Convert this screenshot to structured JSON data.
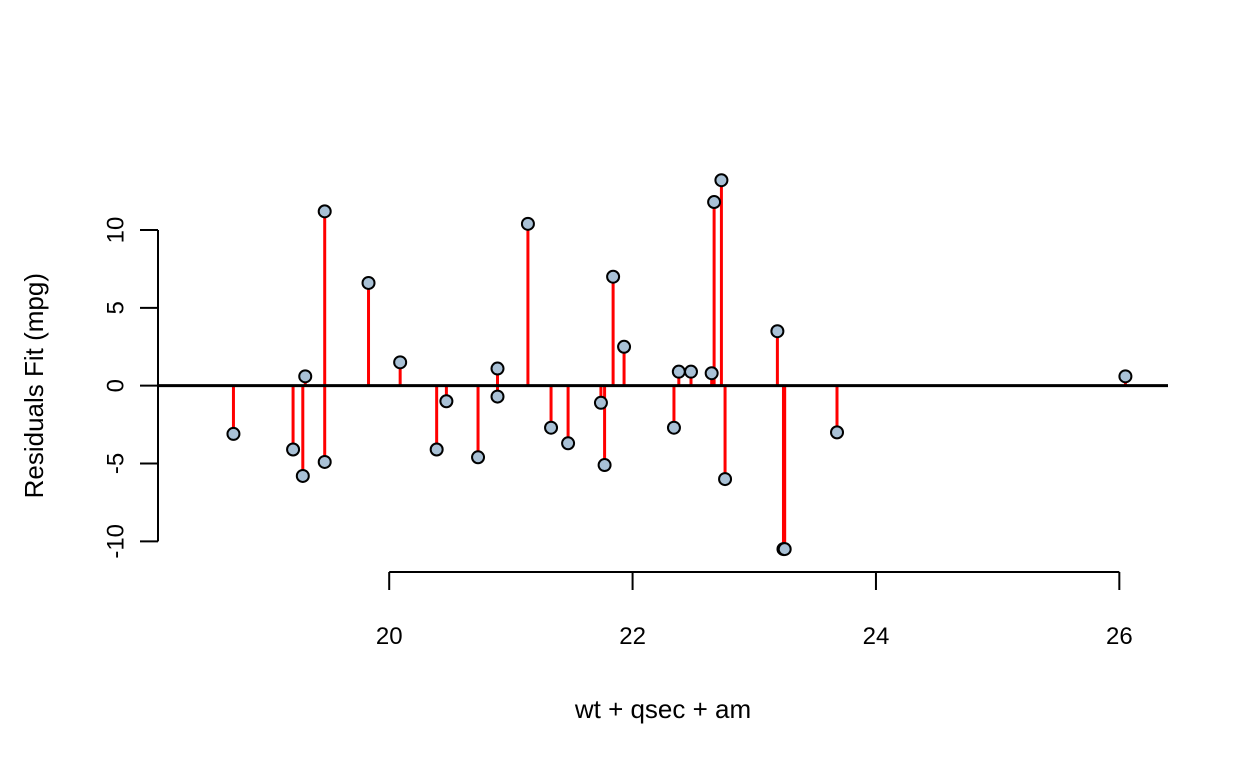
{
  "chart_data": {
    "type": "scatter",
    "title": "",
    "xlabel": "wt + qsec + am",
    "ylabel": "Residuals Fit (mpg)",
    "xlim": [
      18.1,
      26.4
    ],
    "ylim": [
      -11.2,
      14.5
    ],
    "x_axis_ticks": [
      20,
      22,
      24,
      26
    ],
    "y_axis_ticks": [
      -10,
      -5,
      0,
      5,
      10
    ],
    "reference_line_y": 0,
    "grid": false,
    "legend": "none",
    "colors": {
      "segment": "#ff0000",
      "point_fill": "#a9c1d6",
      "point_stroke": "#000000",
      "reference_line": "#000000"
    },
    "points": [
      {
        "x": 18.72,
        "y": -3.1
      },
      {
        "x": 19.21,
        "y": -4.1
      },
      {
        "x": 19.29,
        "y": -5.8
      },
      {
        "x": 19.31,
        "y": 0.6
      },
      {
        "x": 19.47,
        "y": 11.2
      },
      {
        "x": 19.47,
        "y": -4.9
      },
      {
        "x": 19.83,
        "y": 6.6
      },
      {
        "x": 20.09,
        "y": 1.5
      },
      {
        "x": 20.39,
        "y": -4.1
      },
      {
        "x": 20.47,
        "y": -1.0
      },
      {
        "x": 20.73,
        "y": -4.6
      },
      {
        "x": 20.89,
        "y": 1.1
      },
      {
        "x": 20.89,
        "y": -0.7
      },
      {
        "x": 21.14,
        "y": 10.4
      },
      {
        "x": 21.33,
        "y": -2.7
      },
      {
        "x": 21.47,
        "y": -3.7
      },
      {
        "x": 21.74,
        "y": -1.1
      },
      {
        "x": 21.77,
        "y": -5.1
      },
      {
        "x": 21.84,
        "y": 7.0
      },
      {
        "x": 21.93,
        "y": 2.5
      },
      {
        "x": 22.34,
        "y": -2.7
      },
      {
        "x": 22.38,
        "y": 0.9
      },
      {
        "x": 22.48,
        "y": 0.9
      },
      {
        "x": 22.65,
        "y": 0.8
      },
      {
        "x": 22.67,
        "y": 11.8
      },
      {
        "x": 22.73,
        "y": 13.2
      },
      {
        "x": 22.76,
        "y": -6.0
      },
      {
        "x": 23.19,
        "y": 3.5
      },
      {
        "x": 23.24,
        "y": -10.5
      },
      {
        "x": 23.25,
        "y": -10.5
      },
      {
        "x": 23.68,
        "y": -3.0
      },
      {
        "x": 26.05,
        "y": 0.6
      }
    ]
  }
}
